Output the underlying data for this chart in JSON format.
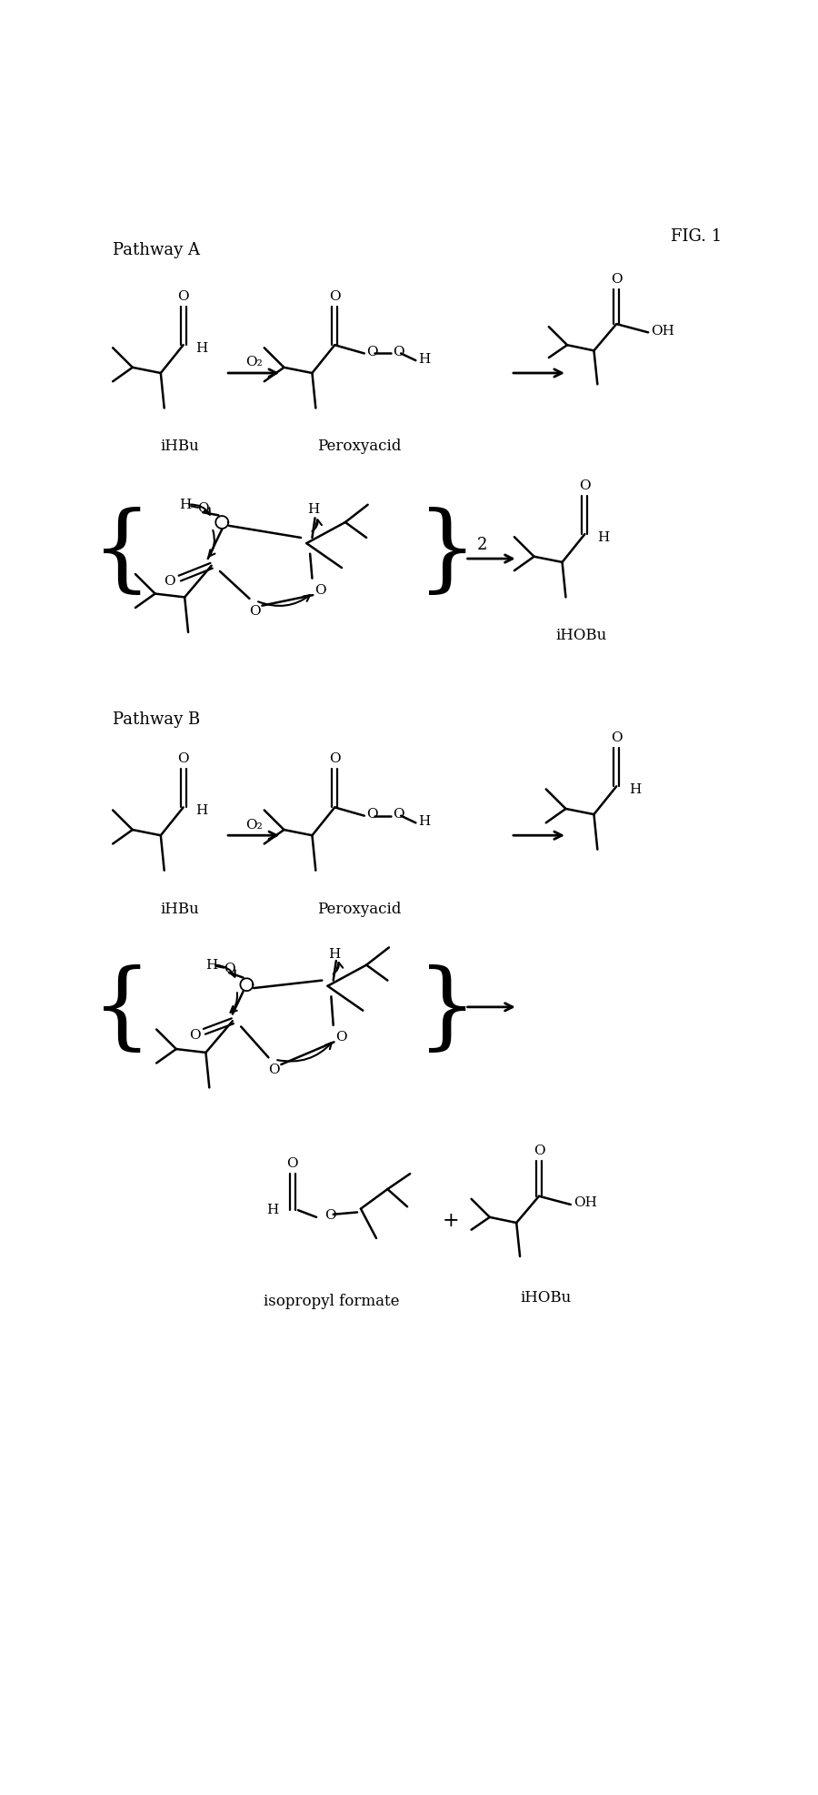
{
  "fig_label": "FIG. 1",
  "pathway_a_label": "Pathway A",
  "pathway_b_label": "Pathway B",
  "bg_color": "#ffffff",
  "line_color": "#000000",
  "font_size_label": 13,
  "font_size_atom": 11,
  "font_size_title": 14,
  "fig_width": 9.0,
  "fig_height": 19.73,
  "dpi": 100
}
